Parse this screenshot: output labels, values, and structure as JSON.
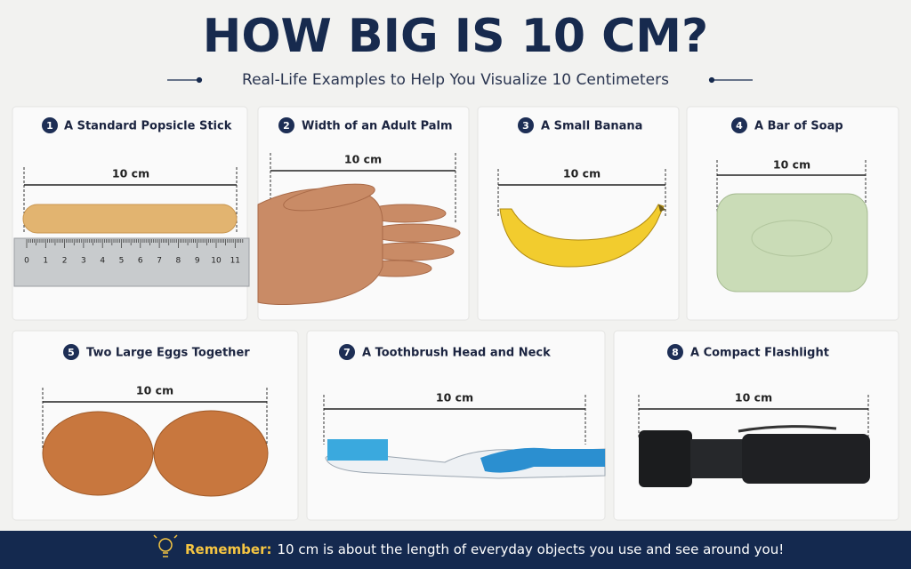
{
  "header": {
    "title": "HOW BIG IS 10 CM?",
    "subtitle": "Real-Life Examples to Help You Visualize 10 Centimeters"
  },
  "cards": [
    {
      "number": 1,
      "title": "A Standard Popsicle Stick",
      "measure": "10 cm",
      "ruler_labels": [
        0,
        1,
        2,
        3,
        4,
        5,
        6,
        7,
        8,
        9,
        10,
        11
      ]
    },
    {
      "number": 2,
      "title": "Width of an Adult Palm",
      "measure": "10 cm"
    },
    {
      "number": 3,
      "title": "A Small Banana",
      "measure": "10 cm"
    },
    {
      "number": 4,
      "title": "A Bar of Soap",
      "measure": "10 cm"
    },
    {
      "number": 5,
      "title": "Two Large Eggs Together",
      "measure": "10 cm"
    },
    {
      "number": 7,
      "title": "A Toothbrush Head and Neck",
      "measure": "10 cm"
    },
    {
      "number": 8,
      "title": "A Compact Flashlight",
      "measure": "10 cm"
    }
  ],
  "footer": {
    "lead": "Remember:",
    "text": "10 cm is about the length of everyday objects you use and see around you!"
  }
}
